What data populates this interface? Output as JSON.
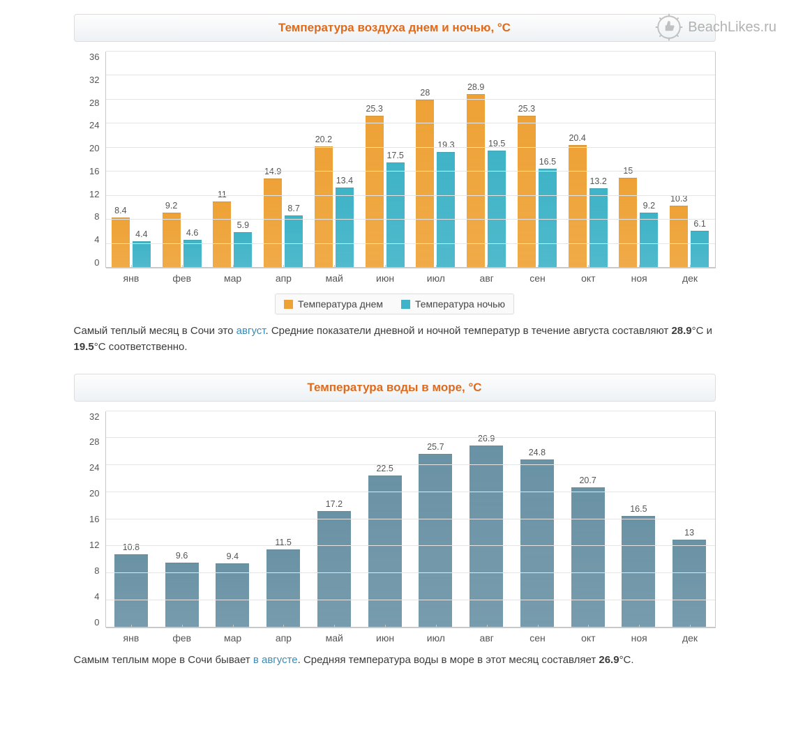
{
  "watermark": "BeachLikes.ru",
  "chart1": {
    "title": "Температура воздуха днем и ночью, °C",
    "title_color": "#e06a1c",
    "type": "bar",
    "categories": [
      "янв",
      "фев",
      "мар",
      "апр",
      "май",
      "июн",
      "июл",
      "авг",
      "сен",
      "окт",
      "ноя",
      "дек"
    ],
    "series": [
      {
        "name": "Температура днем",
        "color": "#eea236",
        "values": [
          8.4,
          9.2,
          11.0,
          14.9,
          20.2,
          25.3,
          28.0,
          28.9,
          25.3,
          20.4,
          15.0,
          10.3
        ]
      },
      {
        "name": "Температура ночью",
        "color": "#3fb3c7",
        "values": [
          4.4,
          4.6,
          5.9,
          8.7,
          13.4,
          17.5,
          19.3,
          19.5,
          16.5,
          13.2,
          9.2,
          6.1
        ]
      }
    ],
    "ylim": [
      0,
      36
    ],
    "ytick_step": 4,
    "label_fontsize": 12.5,
    "label_color": "#555555",
    "grid_color": "#e4e4e4",
    "background_color": "#ffffff",
    "caption_parts": {
      "p1": "Самый теплый месяц в Сочи это ",
      "link": "август",
      "p2": ". Средние показатели дневной и ночной температур в течение августа составляют ",
      "b1": "28.9",
      "p3": "°C и ",
      "b2": "19.5",
      "p4": "°C соответственно."
    }
  },
  "chart2": {
    "title": "Температура воды в море, °C",
    "title_color": "#e06a1c",
    "type": "bar",
    "categories": [
      "янв",
      "фев",
      "мар",
      "апр",
      "май",
      "июн",
      "июл",
      "авг",
      "сен",
      "окт",
      "ноя",
      "дек"
    ],
    "series": [
      {
        "name": "Температура воды",
        "color": "#6a92a5",
        "values": [
          10.8,
          9.6,
          9.4,
          11.5,
          17.2,
          22.5,
          25.7,
          26.9,
          24.8,
          20.7,
          16.5,
          13
        ]
      }
    ],
    "ylim": [
      0,
      32
    ],
    "ytick_step": 4,
    "label_fontsize": 12.5,
    "label_color": "#555555",
    "grid_color": "#e4e4e4",
    "background_color": "#ffffff",
    "caption_parts": {
      "p1": "Самым теплым море в Сочи бывает ",
      "link": "в августе",
      "p2": ". Средняя температура воды в море в этот месяц составляет ",
      "b1": "26.9",
      "p3": "°C."
    }
  }
}
